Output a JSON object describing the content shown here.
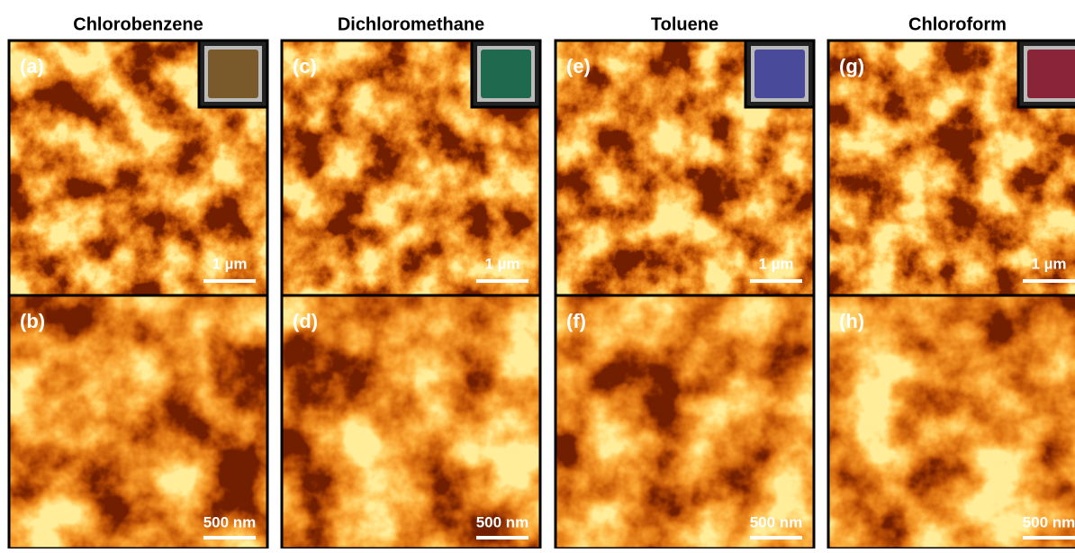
{
  "figure": {
    "columns": [
      {
        "title": "Chlorobenzene",
        "panels": [
          {
            "label": "(a)",
            "scale": "1 µm"
          },
          {
            "label": "(b)",
            "scale": "500 nm"
          }
        ]
      },
      {
        "title": "Dichloromethane",
        "panels": [
          {
            "label": "(c)",
            "scale": "1 µm"
          },
          {
            "label": "(d)",
            "scale": "500 nm"
          }
        ]
      },
      {
        "title": "Toluene",
        "panels": [
          {
            "label": "(e)",
            "scale": "1 µm"
          },
          {
            "label": "(f)",
            "scale": "500 nm"
          }
        ]
      },
      {
        "title": "Chloroform",
        "panels": [
          {
            "label": "(g)",
            "scale": "1 µm"
          },
          {
            "label": "(h)",
            "scale": "500 nm"
          }
        ]
      }
    ]
  }
}
